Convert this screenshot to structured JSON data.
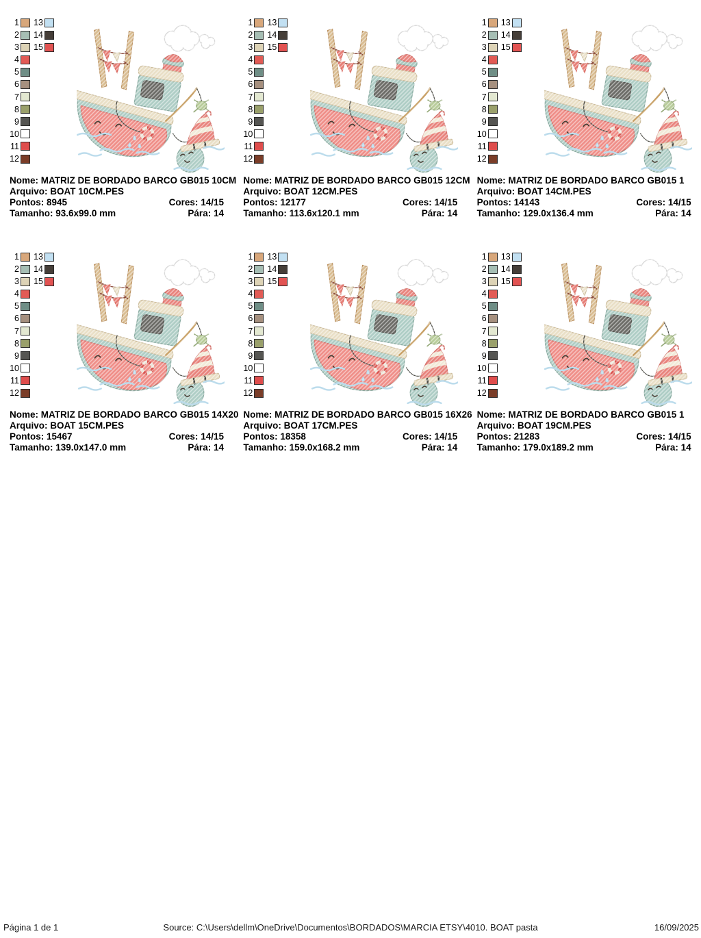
{
  "labels": {
    "nome": "Nome:",
    "arquivo": "Arquivo:",
    "pontos": "Pontos:",
    "cores": "Cores:",
    "tamanho": "Tamanho:",
    "para": "Pára:"
  },
  "palette": {
    "rows": [
      {
        "num": "1",
        "color": "#d8a77b",
        "num2": "13",
        "color2": "#c2e0f2"
      },
      {
        "num": "2",
        "color": "#a6beb4",
        "num2": "14",
        "color2": "#453e38"
      },
      {
        "num": "3",
        "color": "#ddd3b6",
        "num2": "15",
        "color2": "#e25352"
      },
      {
        "num": "4",
        "color": "#e25b55"
      },
      {
        "num": "5",
        "color": "#6f8e86"
      },
      {
        "num": "6",
        "color": "#a6907f"
      },
      {
        "num": "7",
        "color": "#e3e8d1"
      },
      {
        "num": "8",
        "color": "#9aa06b"
      },
      {
        "num": "9",
        "color": "#555552"
      },
      {
        "num": "10",
        "color": "#ffffff"
      },
      {
        "num": "11",
        "color": "#df4d4c"
      },
      {
        "num": "12",
        "color": "#7a3d28"
      }
    ]
  },
  "designs": [
    {
      "name": "MATRIZ DE BORDADO BARCO GB015 10CM",
      "file": "BOAT 10CM.PES",
      "stitches": "8945",
      "colors": "14/15",
      "size": "93.6x99.0 mm",
      "pause": "14"
    },
    {
      "name": "MATRIZ DE BORDADO BARCO GB015 12CM",
      "file": "BOAT 12CM.PES",
      "stitches": "12177",
      "colors": "14/15",
      "size": "113.6x120.1 mm",
      "pause": "14"
    },
    {
      "name": "MATRIZ DE BORDADO BARCO GB015 1",
      "file": "BOAT 14CM.PES",
      "stitches": "14143",
      "colors": "14/15",
      "size": "129.0x136.4 mm",
      "pause": "14"
    },
    {
      "name": "MATRIZ DE BORDADO BARCO GB015 14X20",
      "file": "BOAT 15CM.PES",
      "stitches": "15467",
      "colors": "14/15",
      "size": "139.0x147.0 mm",
      "pause": "14"
    },
    {
      "name": "MATRIZ DE BORDADO BARCO GB015 16X26",
      "file": "BOAT 17CM.PES",
      "stitches": "18358",
      "colors": "14/15",
      "size": "159.0x168.2 mm",
      "pause": "14"
    },
    {
      "name": "MATRIZ DE BORDADO BARCO GB015 1",
      "file": "BOAT 19CM.PES",
      "stitches": "21283",
      "colors": "14/15",
      "size": "179.0x189.2 mm",
      "pause": "14"
    }
  ],
  "footer": {
    "page": "Página 1 de 1",
    "source": "Source: C:\\Users\\dellm\\OneDrive\\Documentos\\BORDADOS\\MARCIA ETSY\\4010. BOAT pasta",
    "date": "16/09/2025"
  }
}
